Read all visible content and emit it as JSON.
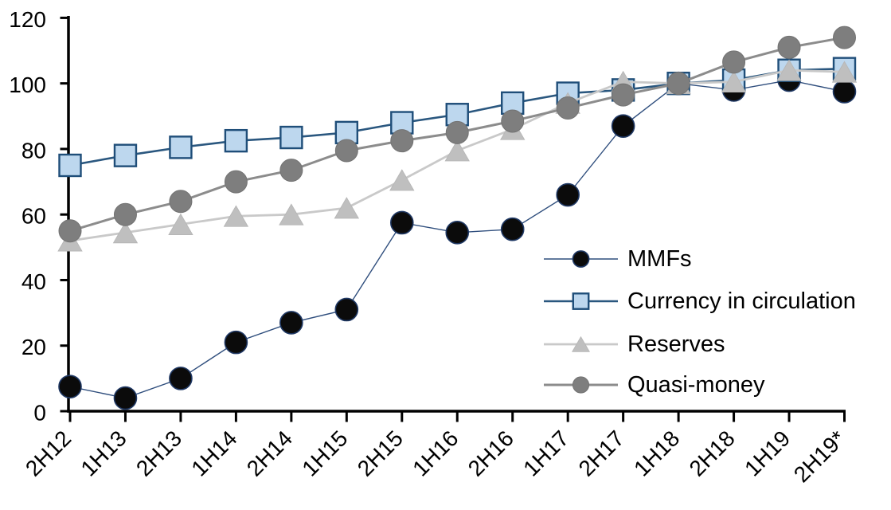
{
  "chart_data": {
    "type": "line",
    "title": "",
    "xlabel": "",
    "ylabel": "",
    "grid": false,
    "background": "#ffffff",
    "axis_color": "#000000",
    "categories": [
      "2H12",
      "1H13",
      "2H13",
      "1H14",
      "2H14",
      "1H15",
      "2H15",
      "1H16",
      "2H16",
      "1H17",
      "2H17",
      "1H18",
      "2H18",
      "1H19",
      "2H19*"
    ],
    "x_tick_label_rotation": 45,
    "y_axis": {
      "min": 0,
      "max": 120,
      "ticks": [
        0,
        20,
        40,
        60,
        80,
        100,
        120
      ]
    },
    "legend": {
      "position": "inside-right",
      "labels": [
        "MMFs",
        "Currency in circulation",
        "Reserves",
        "Quasi-money"
      ]
    },
    "series": [
      {
        "name": "MMFs",
        "slug": "mmfs",
        "marker": "circle",
        "line_color": "#2f4e7d",
        "line_width": 1.4,
        "fill": "#0b0b0b",
        "stroke": "#1f3864",
        "stroke_width": 1.6,
        "values": [
          7.5,
          4,
          10,
          21,
          27,
          31,
          57.5,
          54.5,
          55.5,
          66,
          87,
          100,
          98,
          101,
          97.5
        ]
      },
      {
        "name": "Currency in circulation",
        "slug": "currency-in-circulation",
        "marker": "square",
        "line_color": "#2a577f",
        "line_width": 2.6,
        "fill": "#bdd7ee",
        "stroke": "#1f4e79",
        "stroke_width": 2.4,
        "values": [
          75,
          78,
          80.5,
          82.5,
          83.5,
          85,
          88,
          90.5,
          94,
          97,
          98,
          100,
          101,
          104,
          104.5
        ]
      },
      {
        "name": "Reserves",
        "slug": "reserves",
        "marker": "triangle",
        "line_color": "#c9c9c9",
        "line_width": 2.8,
        "fill": "#bfbfbf",
        "stroke": "#b5b5b5",
        "stroke_width": 0.8,
        "values": [
          52,
          54.5,
          57,
          59.5,
          60,
          62,
          70.5,
          79.5,
          86,
          94,
          100.5,
          100,
          100.5,
          104,
          103.5
        ]
      },
      {
        "name": "Quasi-money",
        "slug": "quasi-money",
        "marker": "circle",
        "line_color": "#8c8c8c",
        "line_width": 3,
        "fill": "#7e7e7e",
        "stroke": "#737373",
        "stroke_width": 1,
        "values": [
          55,
          60,
          64,
          70,
          73.5,
          79.5,
          82.5,
          85,
          88.5,
          92.5,
          96.5,
          100,
          106.5,
          111,
          114
        ]
      }
    ]
  }
}
